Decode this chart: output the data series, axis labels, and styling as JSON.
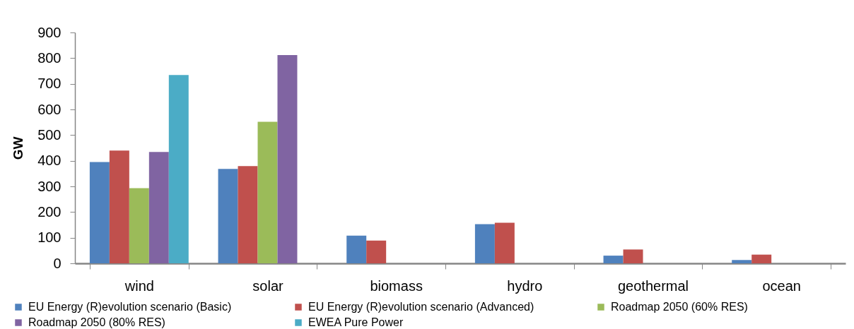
{
  "chart_data": {
    "type": "bar",
    "ylabel": "GW",
    "categories": [
      "wind",
      "solar",
      "biomass",
      "hydro",
      "geothermal",
      "ocean"
    ],
    "series": [
      {
        "name": "EU Energy (R)evolution scenario (Basic)",
        "color": "#4f81bd",
        "values": [
          395,
          368,
          108,
          153,
          30,
          13
        ]
      },
      {
        "name": "EU Energy (R)evolution scenario (Advanced)",
        "color": "#c0504d",
        "values": [
          440,
          379,
          89,
          158,
          54,
          34
        ]
      },
      {
        "name": "Roadmap 2050 (60% RES)",
        "color": "#9bbb59",
        "values": [
          293,
          552,
          null,
          null,
          null,
          null
        ]
      },
      {
        "name": "Roadmap 2050 (80% RES)",
        "color": "#8064a2",
        "values": [
          434,
          812,
          null,
          null,
          null,
          null
        ]
      },
      {
        "name": "EWEA Pure Power",
        "color": "#4bacc6",
        "values": [
          734,
          null,
          null,
          null,
          null,
          null
        ]
      }
    ],
    "ylim": [
      0,
      900
    ],
    "yticks": [
      0,
      100,
      200,
      300,
      400,
      500,
      600,
      700,
      800,
      900
    ],
    "legend": "bottom"
  }
}
